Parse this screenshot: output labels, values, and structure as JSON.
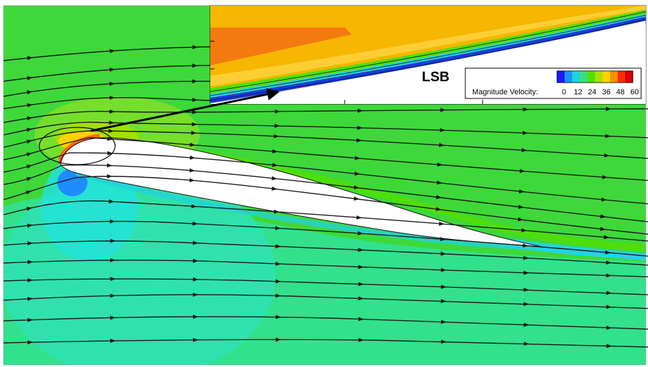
{
  "inset": {
    "label": "LSB"
  },
  "legend": {
    "title": "Magnitude Velocity:",
    "ticks": [
      "0",
      "12",
      "24",
      "36",
      "48",
      "60"
    ],
    "colors": [
      "#1a1aff",
      "#1e90ff",
      "#22d3d8",
      "#3ddc84",
      "#52e000",
      "#a8e000",
      "#ffd200",
      "#ff8c00",
      "#ff2a00",
      "#d40000"
    ]
  },
  "colors": {
    "freestream": "#3ed83a",
    "upper_accel": "#7fe02a",
    "lower_slow": "#2fe2a8",
    "stagnation": "#22d8e0",
    "suction_peak": "#ff8c00",
    "inset_core": "#f7b600",
    "inset_peak": "#f47a10",
    "inset_boundary": "#1a3bd8",
    "streamline": "#1a1a1a"
  }
}
